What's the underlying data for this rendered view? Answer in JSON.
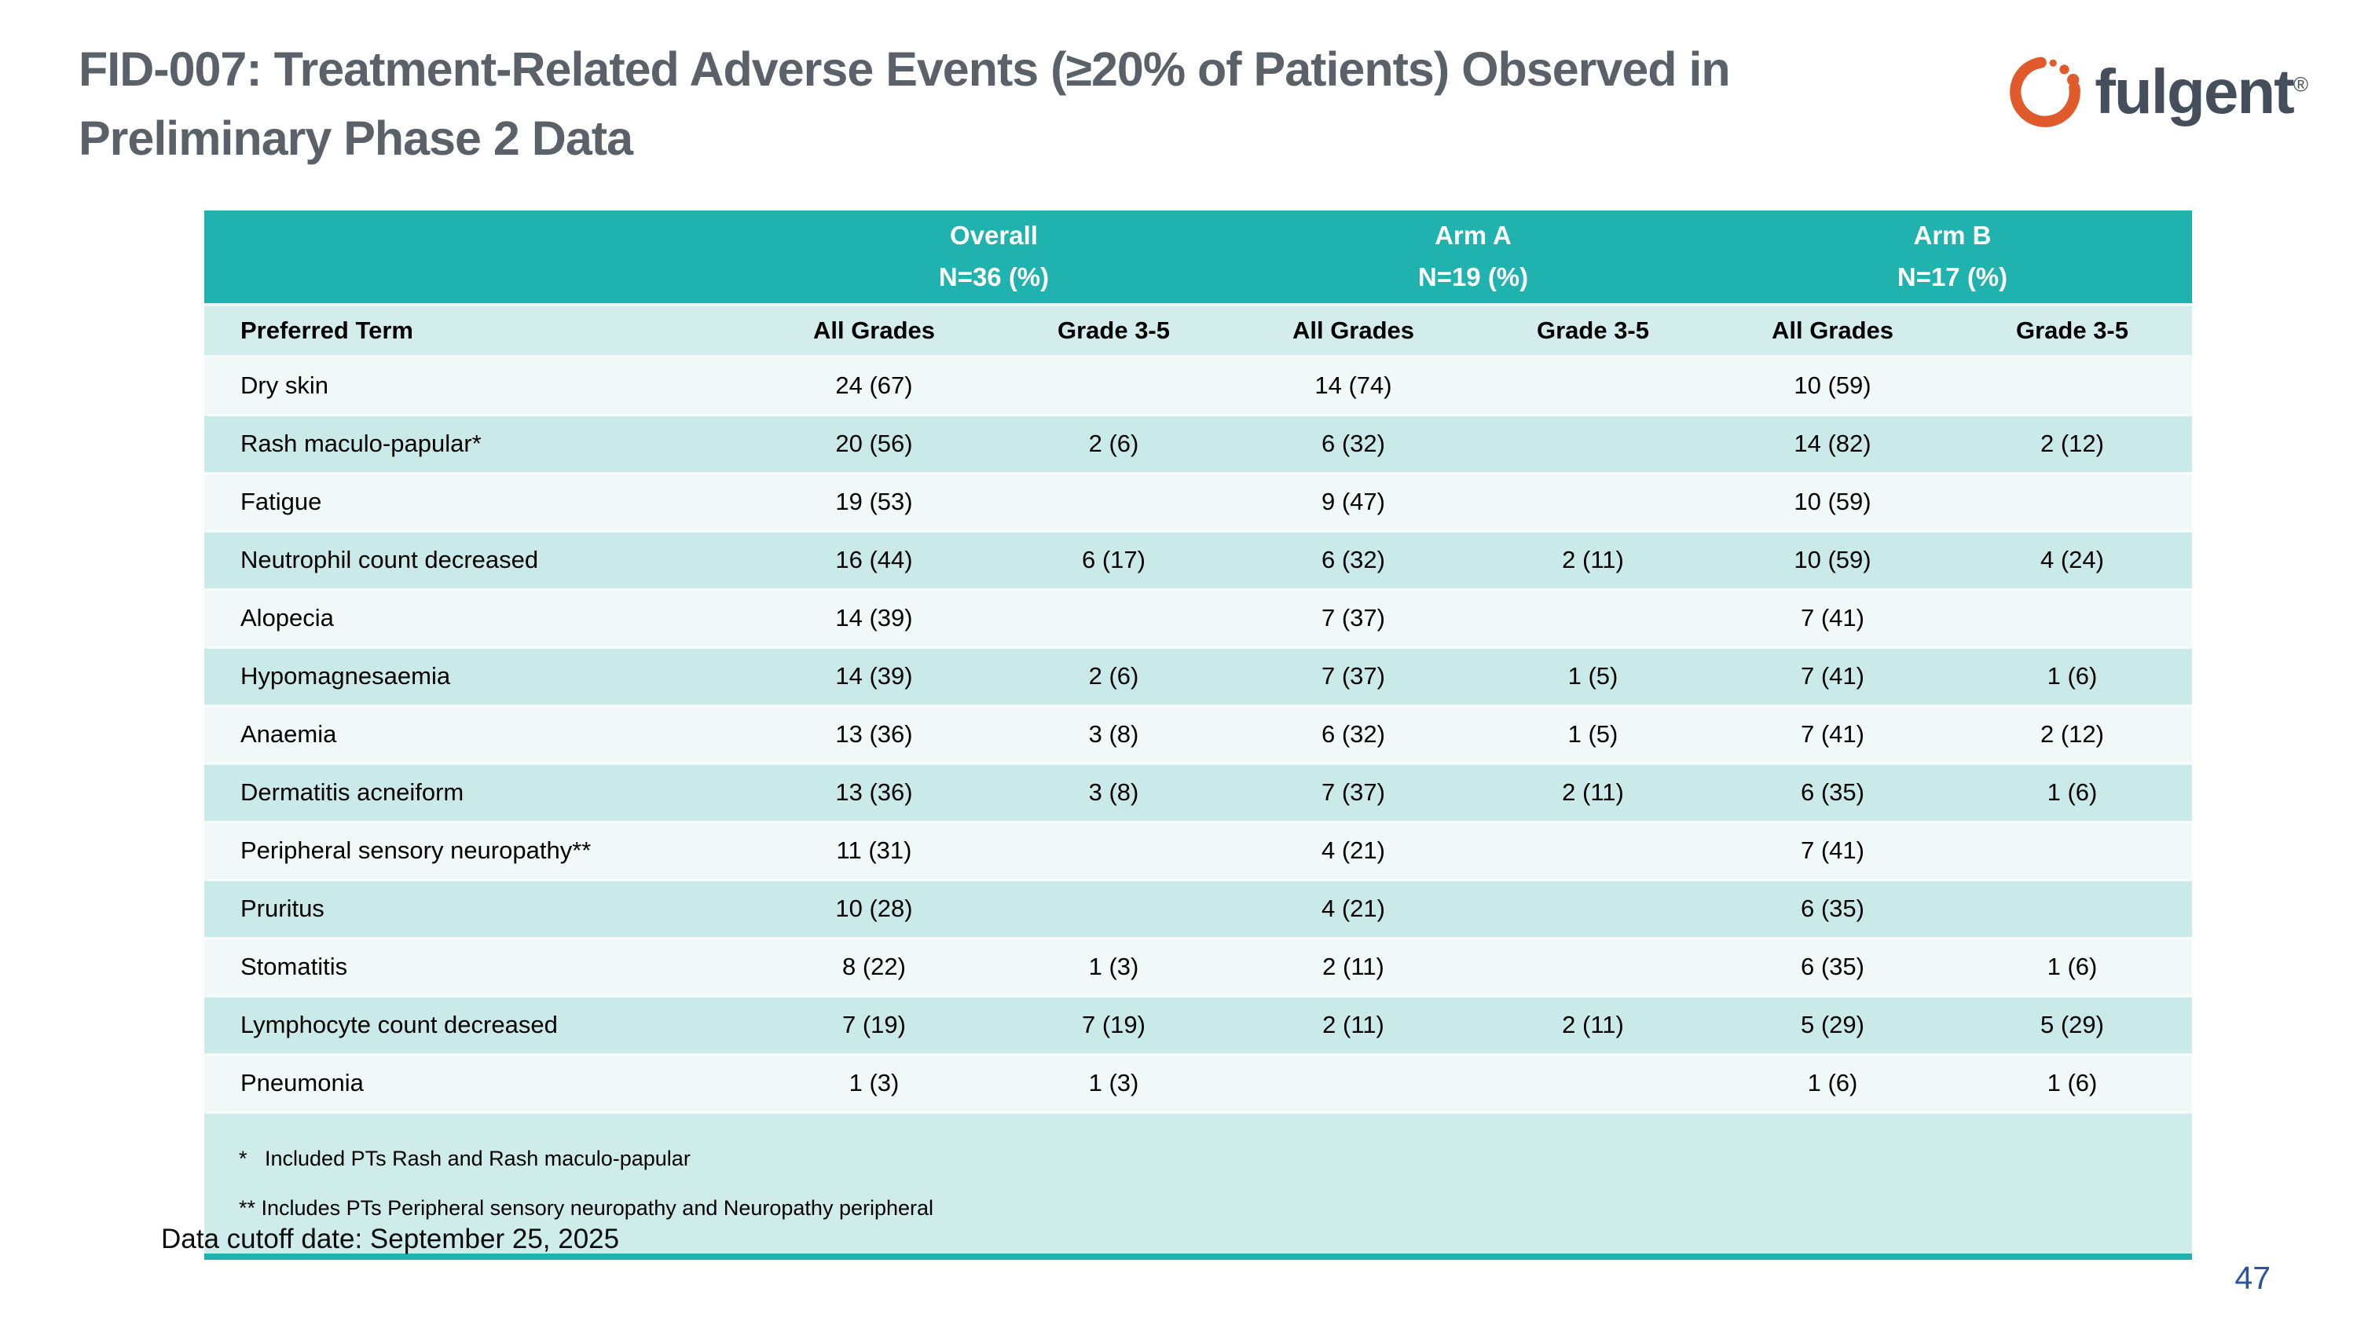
{
  "slide": {
    "title": "FID-007: Treatment-Related Adverse Events (≥20% of Patients) Observed in\nPreliminary Phase 2 Data",
    "data_cutoff": "Data cutoff date: September 25, 2025",
    "page_number": "47"
  },
  "logo": {
    "wordmark": "fulgent",
    "registered_mark": "®",
    "ring_color": "#e05a2b",
    "wordmark_color": "#454f5c"
  },
  "colors": {
    "header_teal": "#20b2ae",
    "subheader_bg": "#d2edeb",
    "row_light": "#f0f9f8",
    "row_dark": "#c9eae8",
    "footnote_bg": "#cdecea",
    "title_gray": "#5a6168",
    "page_number_blue": "#2a5699"
  },
  "table": {
    "group_headers": [
      {
        "label": "Overall",
        "sub": "N=36 (%)"
      },
      {
        "label": "Arm A",
        "sub": "N=19 (%)"
      },
      {
        "label": "Arm B",
        "sub": "N=17 (%)"
      }
    ],
    "column_headers": [
      "Preferred Term",
      "All Grades",
      "Grade 3-5",
      "All Grades",
      "Grade 3-5",
      "All Grades",
      "Grade 3-5"
    ],
    "rows": [
      {
        "term": "Dry skin",
        "values": [
          "24 (67)",
          "",
          "14 (74)",
          "",
          "10 (59)",
          ""
        ]
      },
      {
        "term": "Rash maculo-papular*",
        "values": [
          "20 (56)",
          "2 (6)",
          "6 (32)",
          "",
          "14 (82)",
          "2 (12)"
        ]
      },
      {
        "term": "Fatigue",
        "values": [
          "19 (53)",
          "",
          "9 (47)",
          "",
          "10 (59)",
          ""
        ]
      },
      {
        "term": "Neutrophil count decreased",
        "values": [
          "16 (44)",
          "6 (17)",
          "6 (32)",
          "2 (11)",
          "10 (59)",
          "4 (24)"
        ]
      },
      {
        "term": "Alopecia",
        "values": [
          "14 (39)",
          "",
          "7 (37)",
          "",
          "7 (41)",
          ""
        ]
      },
      {
        "term": "Hypomagnesaemia",
        "values": [
          "14 (39)",
          "2 (6)",
          "7 (37)",
          "1 (5)",
          "7 (41)",
          "1 (6)"
        ]
      },
      {
        "term": "Anaemia",
        "values": [
          "13 (36)",
          "3 (8)",
          "6 (32)",
          "1 (5)",
          "7 (41)",
          "2 (12)"
        ]
      },
      {
        "term": "Dermatitis acneiform",
        "values": [
          "13 (36)",
          "3 (8)",
          "7 (37)",
          "2 (11)",
          "6 (35)",
          "1 (6)"
        ]
      },
      {
        "term": "Peripheral sensory neuropathy**",
        "values": [
          "11 (31)",
          "",
          "4 (21)",
          "",
          "7 (41)",
          ""
        ]
      },
      {
        "term": "Pruritus",
        "values": [
          "10 (28)",
          "",
          "4 (21)",
          "",
          "6 (35)",
          ""
        ]
      },
      {
        "term": "Stomatitis",
        "values": [
          "8 (22)",
          "1 (3)",
          "2 (11)",
          "",
          "6 (35)",
          "1 (6)"
        ]
      },
      {
        "term": "Lymphocyte count decreased",
        "values": [
          "7 (19)",
          "7 (19)",
          "2 (11)",
          "2 (11)",
          "5 (29)",
          "5 (29)"
        ]
      },
      {
        "term": "Pneumonia",
        "values": [
          "1 (3)",
          "1 (3)",
          "",
          "",
          "1 (6)",
          "1 (6)"
        ]
      }
    ],
    "footnotes": [
      "*   Included PTs Rash and Rash maculo-papular",
      "** Includes PTs Peripheral sensory neuropathy and Neuropathy peripheral"
    ]
  }
}
